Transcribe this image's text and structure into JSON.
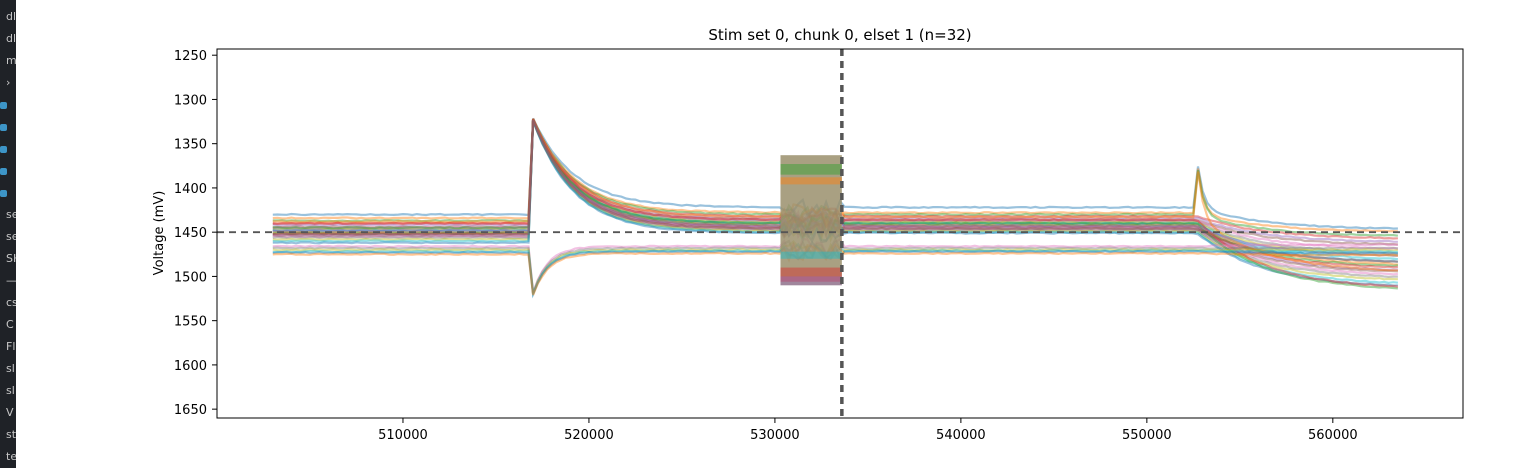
{
  "side_strip": {
    "items": [
      "dl",
      "dl",
      "m",
      "›",
      "",
      "",
      "",
      "",
      "",
      "se",
      "se",
      "SH",
      "—",
      "cs",
      "C",
      "Fl",
      "sl",
      "sl",
      "V",
      "str",
      "tes"
    ]
  },
  "chart_data": {
    "type": "line",
    "title": "Stim set 0, chunk 0, elset 1 (n=32)",
    "xlabel": "",
    "ylabel": "Voltage (mV)",
    "xlim": [
      500000,
      567000
    ],
    "ylim": [
      1660,
      1243
    ],
    "y_inverted": true,
    "x_ticks": [
      510000,
      520000,
      530000,
      540000,
      550000,
      560000
    ],
    "x_tick_labels": [
      "510000",
      "520000",
      "530000",
      "540000",
      "550000",
      "560000"
    ],
    "y_ticks": [
      1250,
      1300,
      1350,
      1400,
      1450,
      1500,
      1550,
      1600,
      1650
    ],
    "y_tick_labels": [
      "1250",
      "1300",
      "1350",
      "1400",
      "1450",
      "1500",
      "1550",
      "1600",
      "1650"
    ],
    "grid": false,
    "legend": "none",
    "n_traces": 32,
    "x_start": 503000,
    "x_end": 563500,
    "stim_onsets": [
      517000,
      552700
    ],
    "noisy_block": [
      530300,
      533600
    ],
    "reference_lines": {
      "horizontal": 1450,
      "vertical": 533600,
      "color": "#555555",
      "style": "dashed"
    },
    "colors": [
      "#1f77b4",
      "#ff7f0e",
      "#2ca02c",
      "#d62728",
      "#9467bd",
      "#8c564b",
      "#e377c2",
      "#7f7f7f",
      "#bcbd22",
      "#17becf"
    ],
    "series": [
      {
        "baseline": 1430,
        "post": 1422,
        "late": 1447
      },
      {
        "baseline": 1434,
        "post": 1428,
        "late": 1450
      },
      {
        "baseline": 1437,
        "post": 1430,
        "late": 1455
      },
      {
        "baseline": 1440,
        "post": 1432,
        "late": 1458
      },
      {
        "baseline": 1442,
        "post": 1434,
        "late": 1462
      },
      {
        "baseline": 1444,
        "post": 1436,
        "late": 1465
      },
      {
        "baseline": 1445,
        "post": 1437,
        "late": 1470
      },
      {
        "baseline": 1446,
        "post": 1438,
        "late": 1475
      },
      {
        "baseline": 1447,
        "post": 1439,
        "late": 1478
      },
      {
        "baseline": 1448,
        "post": 1440,
        "late": 1482
      },
      {
        "baseline": 1449,
        "post": 1441,
        "late": 1485
      },
      {
        "baseline": 1450,
        "post": 1442,
        "late": 1488
      },
      {
        "baseline": 1451,
        "post": 1443,
        "late": 1490
      },
      {
        "baseline": 1452,
        "post": 1444,
        "late": 1492
      },
      {
        "baseline": 1453,
        "post": 1445,
        "late": 1495
      },
      {
        "baseline": 1454,
        "post": 1446,
        "late": 1497
      },
      {
        "baseline": 1455,
        "post": 1447,
        "late": 1500
      },
      {
        "baseline": 1456,
        "post": 1448,
        "late": 1503
      },
      {
        "baseline": 1458,
        "post": 1449,
        "late": 1506
      },
      {
        "baseline": 1460,
        "post": 1450,
        "late": 1510
      },
      {
        "baseline": 1462,
        "post": 1451,
        "late": 1513
      },
      {
        "baseline": 1438,
        "post": 1433,
        "late": 1496
      },
      {
        "baseline": 1445,
        "post": 1440,
        "late": 1517
      },
      {
        "baseline": 1440,
        "post": 1436,
        "late": 1515
      },
      {
        "baseline": 1448,
        "post": 1443,
        "late": 1478
      },
      {
        "baseline": 1452,
        "post": 1446,
        "late": 1485
      },
      {
        "baseline": 1466,
        "post": 1466,
        "late": 1464
      },
      {
        "baseline": 1468,
        "post": 1468,
        "late": 1468
      },
      {
        "baseline": 1470,
        "post": 1470,
        "late": 1470
      },
      {
        "baseline": 1472,
        "post": 1471,
        "late": 1472
      },
      {
        "baseline": 1473,
        "post": 1472,
        "late": 1474
      },
      {
        "baseline": 1475,
        "post": 1474,
        "late": 1476
      }
    ]
  }
}
